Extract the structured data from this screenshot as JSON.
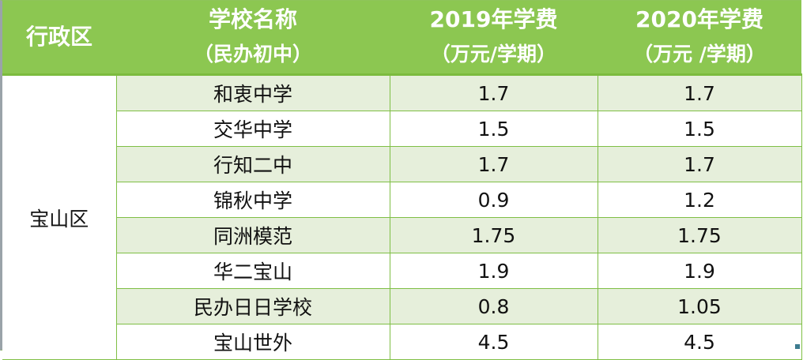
{
  "table": {
    "headers": [
      {
        "line1": "行政区",
        "line2": ""
      },
      {
        "line1": "学校名称",
        "line2": "（民办初中）"
      },
      {
        "line1": "2019年学费",
        "line2": "（万元/学期）"
      },
      {
        "line1": "2020年学费",
        "line2": "（万元 /学期）"
      }
    ],
    "district": "宝山区",
    "rows": [
      {
        "school": "和衷中学",
        "fee_2019": "1.7",
        "fee_2020": "1.7"
      },
      {
        "school": "交华中学",
        "fee_2019": "1.5",
        "fee_2020": "1.5"
      },
      {
        "school": "行知二中",
        "fee_2019": "1.7",
        "fee_2020": "1.7"
      },
      {
        "school": "锦秋中学",
        "fee_2019": "0.9",
        "fee_2020": "1.2"
      },
      {
        "school": "同洲模范",
        "fee_2019": "1.75",
        "fee_2020": "1.75"
      },
      {
        "school": "华二宝山",
        "fee_2019": "1.9",
        "fee_2020": "1.9"
      },
      {
        "school": "民办日日学校",
        "fee_2019": "0.8",
        "fee_2020": "1.05"
      },
      {
        "school": "宝山世外",
        "fee_2019": "4.5",
        "fee_2020": "4.5"
      }
    ]
  },
  "colors": {
    "header_bg": "#8cc751",
    "header_text": "#ffffff",
    "stripe_bg": "#e6efdb",
    "border": "#7fbf45"
  }
}
